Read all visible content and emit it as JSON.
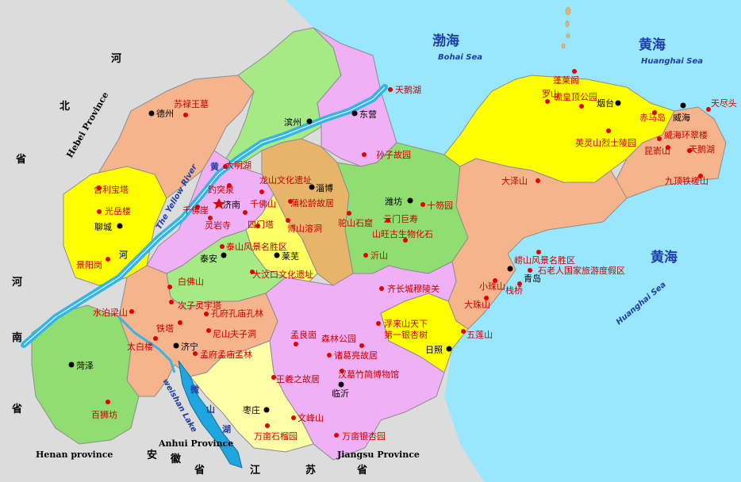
{
  "colors": {
    "sea": "#99e6ff",
    "outside": "#dcdcdc",
    "light_green": "#a6ea85",
    "green": "#90dd72",
    "pink": "#f0b0f5",
    "orange": "#f6b48c",
    "yellow": "#ffff00",
    "light_yellow": "#ffffa8",
    "tan": "#e7b56a",
    "river": "#33b5e6",
    "lake": "#1fa6e0",
    "border": "#8c8c8c",
    "city_dot": "#000000",
    "poi_dot": "#e00000",
    "poi_text": "#cc0000",
    "label_blue": "#1f3fa8"
  },
  "seas": [
    {
      "name": "渤海",
      "en": "Bohai Sea"
    },
    {
      "name": "黄海",
      "en": "Huanghai Sea"
    },
    {
      "name": "黄海",
      "en": "Huanghai Sea"
    }
  ],
  "provinces": {
    "hebei": {
      "cn": [
        "河",
        "北",
        "省"
      ],
      "en": "Hebei Province"
    },
    "henan": {
      "cn": [
        "河",
        "南",
        "省"
      ],
      "en": "Henan province"
    },
    "anhui": {
      "cn": [
        "安",
        "徽",
        "省"
      ],
      "en": "Anhui Province"
    },
    "jiangsu": {
      "cn": [
        "江",
        "苏",
        "省"
      ],
      "en": "Jiangsu Province"
    }
  },
  "rivers": {
    "yellow_river_cn": "黄",
    "yellow_river_cn2": "河",
    "yellow_river_en": "The Yellow River",
    "lake_cn": [
      "微",
      "山",
      "湖"
    ],
    "lake_en": "weishan Lake",
    "river_lower_cn": "河"
  },
  "cities": [
    "德州",
    "滨州",
    "东营",
    "烟台",
    "威海",
    "济南",
    "淄博",
    "潍坊",
    "莱芜",
    "泰安",
    "聊城",
    "青岛",
    "济宁",
    "菏泽",
    "日照",
    "临沂",
    "枣庄"
  ],
  "pois": [
    "苏禄王墓",
    "天鹅湖",
    "蓬莱阁",
    "罗山",
    "毓皇顶公园",
    "赤马岛",
    "天尽头",
    "威海环翠楼",
    "英灵山烈士陵园",
    "昆嵛山",
    "天鹅湖",
    "九顶铁槎山",
    "大明湖",
    "趵突泉",
    "千佛山",
    "灵岩寺",
    "四门塔",
    "龙山文化遗址",
    "蒲松龄故居",
    "博山溶洞",
    "孙子故园",
    "十笏园",
    "驼山石窟",
    "云门巨寿",
    "山旺古生物化石",
    "泰山风景名胜区",
    "大汶口文化遗址",
    "沂山",
    "大泽山",
    "崂山风景名胜区",
    "石老人国家旅游度假区",
    "栈桥",
    "小珠山",
    "大珠山",
    "五莲山",
    "浮来山天下",
    "第一银杏树",
    "齐长城穆陵关",
    "森林公园",
    "孟良崮",
    "诸葛亮故居",
    "王羲之故居",
    "汉墓竹简博物馆",
    "文峰山",
    "万亩银杏园",
    "万亩石榴园",
    "孔府孔庙孔林",
    "尼山夫子洞",
    "孟府孟庙孟林",
    "铁塔",
    "太白楼",
    "次子灵宇塔",
    "白佛山",
    "水泊梁山",
    "百狮坊",
    "光岳楼",
    "舍利宝塔",
    "景阳岗",
    "千佛崖"
  ]
}
